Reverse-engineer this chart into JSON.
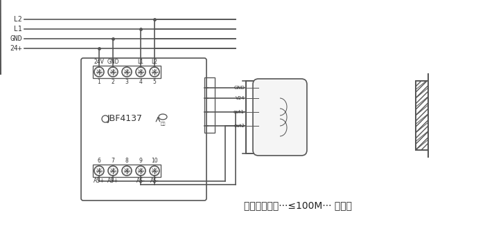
{
  "bg_color": "#ffffff",
  "line_color": "#555555",
  "text_color": "#333333",
  "label_L2": "L2",
  "label_L1": "L1",
  "label_GND": "GND",
  "label_24p": "24+",
  "device_name": "JBF4137",
  "terminal_top_labels": [
    "24V",
    "GND",
    "",
    "L1",
    "L2"
  ],
  "terminal_top_nums": [
    "1",
    "2",
    "3",
    "4",
    "5"
  ],
  "terminal_bot_labels": [
    "AS+",
    "AS+",
    "",
    "AS-",
    "AS-"
  ],
  "terminal_bot_nums": [
    "6",
    "7",
    "8",
    "9",
    "10"
  ],
  "sensor_labels": [
    "GND",
    "V24",
    "out1",
    "out2"
  ],
  "bottom_text": "发射、接收器···≤100M··· 反光板",
  "lw": 1.2
}
